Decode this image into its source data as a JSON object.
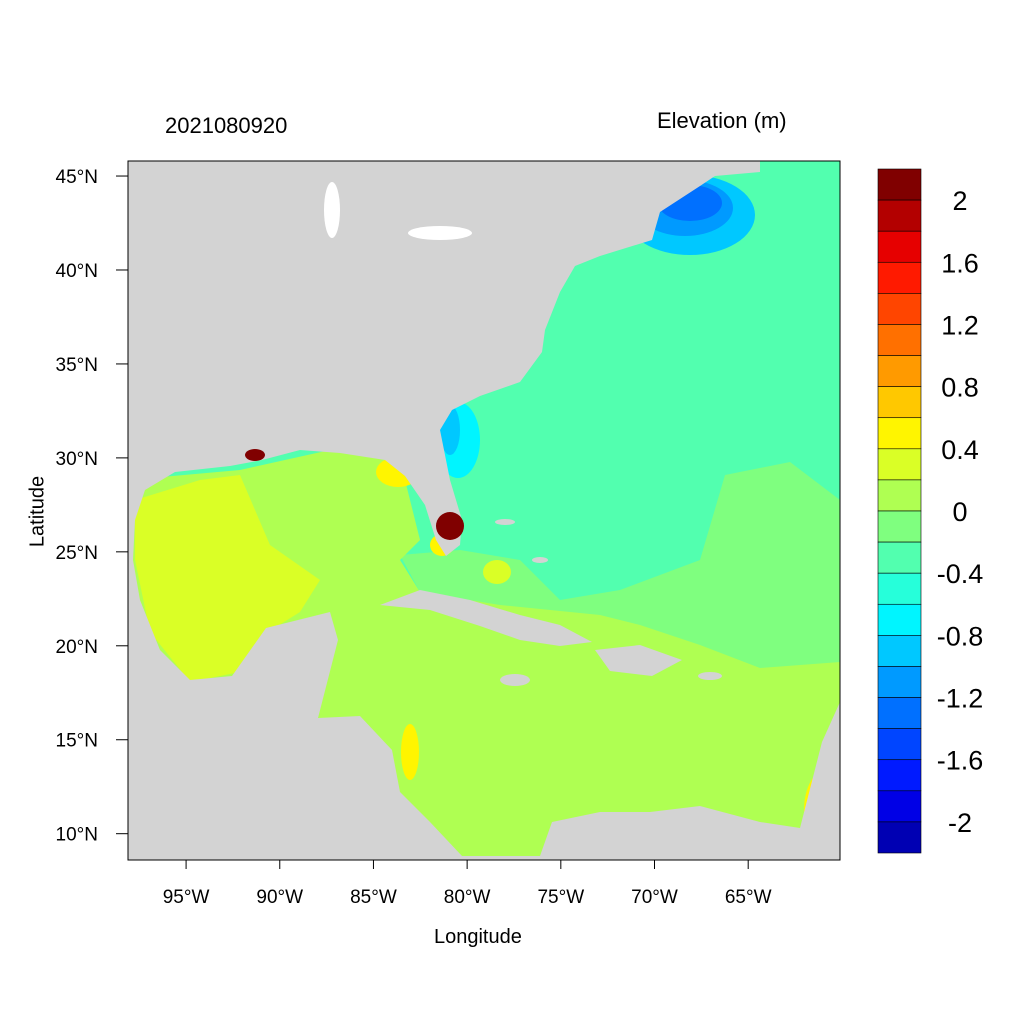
{
  "chart_data": {
    "type": "heatmap",
    "subtype": "filled contour map",
    "title_left": "2021080920",
    "title_right": "Elevation (m)",
    "xlabel": "Longitude",
    "ylabel": "Latitude",
    "xlim": [
      -98.1,
      -60.1
    ],
    "ylim": [
      8.6,
      45.8
    ],
    "x_ticks": [
      {
        "value": -95,
        "label": "95°W"
      },
      {
        "value": -90,
        "label": "90°W"
      },
      {
        "value": -85,
        "label": "85°W"
      },
      {
        "value": -80,
        "label": "80°W"
      },
      {
        "value": -75,
        "label": "75°W"
      },
      {
        "value": -70,
        "label": "70°W"
      },
      {
        "value": -65,
        "label": "65°W"
      }
    ],
    "y_ticks": [
      {
        "value": 45,
        "label": "45°N"
      },
      {
        "value": 40,
        "label": "40°N"
      },
      {
        "value": 35,
        "label": "35°N"
      },
      {
        "value": 30,
        "label": "30°N"
      },
      {
        "value": 25,
        "label": "25°N"
      },
      {
        "value": 20,
        "label": "20°N"
      },
      {
        "value": 15,
        "label": "15°N"
      },
      {
        "value": 10,
        "label": "10°N"
      }
    ],
    "land_color": "#D3D3D3",
    "colorbar": {
      "levels": [
        2,
        1.8,
        1.6,
        1.4,
        1.2,
        1.0,
        0.8,
        0.6,
        0.4,
        0.2,
        0,
        -0.2,
        -0.4,
        -0.6,
        -0.8,
        -1.0,
        -1.2,
        -1.4,
        -1.6,
        -1.8,
        -2
      ],
      "labels": [
        {
          "value": 2,
          "label": "2"
        },
        {
          "value": 1.6,
          "label": "1.6"
        },
        {
          "value": 1.2,
          "label": "1.2"
        },
        {
          "value": 0.8,
          "label": "0.8"
        },
        {
          "value": 0.4,
          "label": "0.4"
        },
        {
          "value": 0,
          "label": "0"
        },
        {
          "value": -0.4,
          "label": "-0.4"
        },
        {
          "value": -0.8,
          "label": "-0.8"
        },
        {
          "value": -1.2,
          "label": "-1.2"
        },
        {
          "value": -1.6,
          "label": "-1.6"
        },
        {
          "value": -2,
          "label": "-2"
        }
      ],
      "colors_top_to_bottom": [
        "#800000",
        "#B30000",
        "#E60000",
        "#FF1A00",
        "#FF4500",
        "#FF7000",
        "#FF9A00",
        "#FFC800",
        "#FFF500",
        "#DAFF26",
        "#AFFF52",
        "#7FFF7F",
        "#52FFAF",
        "#26FFDA",
        "#00F5FF",
        "#00C8FF",
        "#009AFF",
        "#0070FF",
        "#0045FF",
        "#001AFF",
        "#0000E6",
        "#0000B3"
      ]
    }
  }
}
